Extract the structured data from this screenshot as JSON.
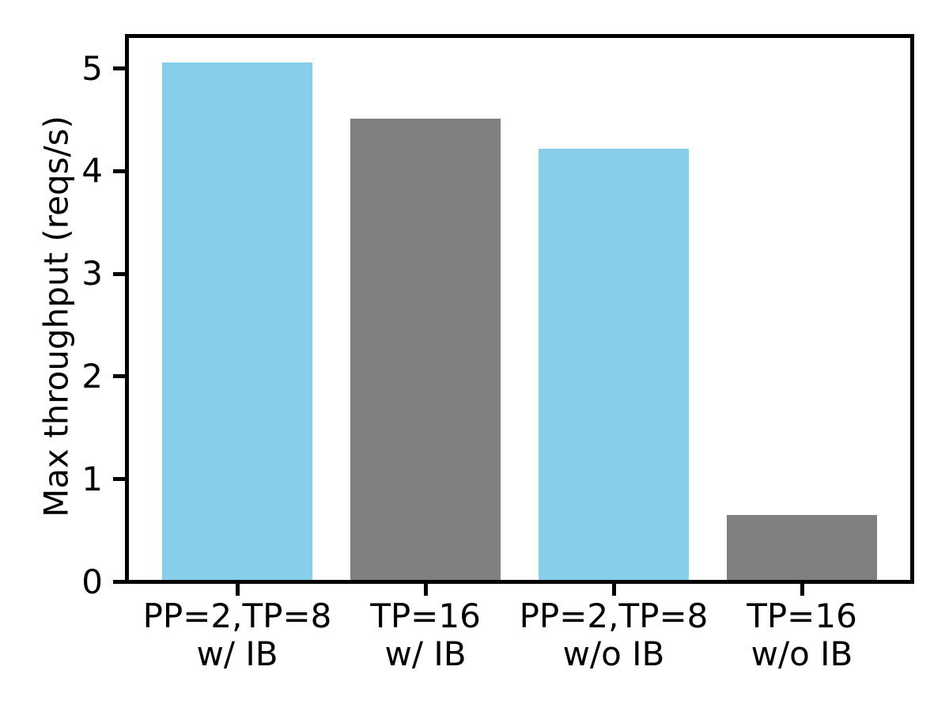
{
  "chart_data": {
    "type": "bar",
    "title": "",
    "ylabel": "Max throughput (reqs/s)",
    "xlabel": "",
    "categories": [
      [
        "PP=2,TP=8",
        "w/ IB"
      ],
      [
        "TP=16",
        "w/ IB"
      ],
      [
        "PP=2,TP=8",
        "w/o IB"
      ],
      [
        "TP=16",
        "w/o IB"
      ]
    ],
    "values": [
      5.06,
      4.51,
      4.22,
      0.65
    ],
    "bar_colors": [
      "#87CEEB",
      "#808080",
      "#87CEEB",
      "#808080"
    ],
    "yticks": [
      0,
      1,
      2,
      3,
      4,
      5
    ],
    "ylim": [
      0,
      5.32
    ],
    "bar_width_ratio": 0.8,
    "grid": false,
    "legend": "none",
    "colors": {
      "highlight_bar": "#87CEEB",
      "baseline_bar": "#808080",
      "axis": "#000000",
      "background": "#ffffff"
    }
  }
}
